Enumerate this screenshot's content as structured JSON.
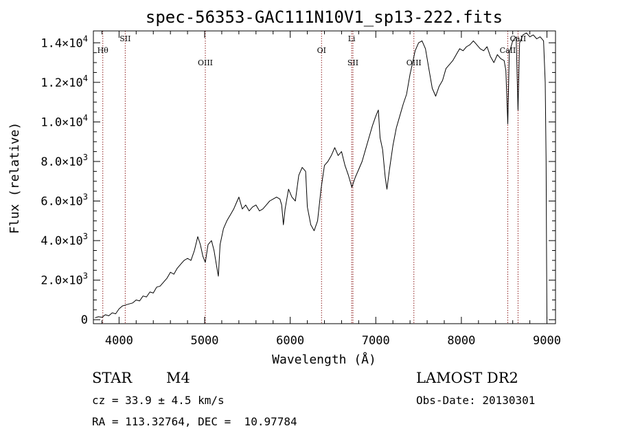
{
  "chart_data": {
    "type": "line",
    "title": "spec-56353-GAC111N10V1_sp13-222.fits",
    "xlabel": "Wavelength (Å)",
    "ylabel": "Flux (relative)",
    "xlim": [
      3700,
      9100
    ],
    "ylim": [
      -200,
      14600
    ],
    "x_ticks": [
      {
        "value": 4000,
        "label": "4000"
      },
      {
        "value": 5000,
        "label": "5000"
      },
      {
        "value": 6000,
        "label": "6000"
      },
      {
        "value": 7000,
        "label": "7000"
      },
      {
        "value": 8000,
        "label": "8000"
      },
      {
        "value": 9000,
        "label": "9000"
      }
    ],
    "y_ticks": [
      {
        "value": 0,
        "mant": "0",
        "exp": ""
      },
      {
        "value": 2000,
        "mant": "2.0×10",
        "exp": "3"
      },
      {
        "value": 4000,
        "mant": "4.0×10",
        "exp": "3"
      },
      {
        "value": 6000,
        "mant": "6.0×10",
        "exp": "3"
      },
      {
        "value": 8000,
        "mant": "8.0×10",
        "exp": "3"
      },
      {
        "value": 10000,
        "mant": "1.0×10",
        "exp": "4"
      },
      {
        "value": 12000,
        "mant": "1.2×10",
        "exp": "4"
      },
      {
        "value": 14000,
        "mant": "1.4×10",
        "exp": "4"
      }
    ],
    "grid": false,
    "lines": [
      {
        "wavelength": 3810,
        "label": "Hθ",
        "row": "upper"
      },
      {
        "wavelength": 4072,
        "label": "SII",
        "row": "top"
      },
      {
        "wavelength": 5008,
        "label": "OIII",
        "row": "mid"
      },
      {
        "wavelength": 6366,
        "label": "OI",
        "row": "upper"
      },
      {
        "wavelength": 6718,
        "label": "Li",
        "row": "top"
      },
      {
        "wavelength": 6733,
        "label": "SII",
        "row": "mid"
      },
      {
        "wavelength": 7445,
        "label": "OIII",
        "row": "mid"
      },
      {
        "wavelength": 8542,
        "label": "CaII",
        "row": "upper"
      },
      {
        "wavelength": 8662,
        "label": "CaII",
        "row": "top"
      }
    ],
    "spectrum": [
      [
        3720,
        100
      ],
      [
        3760,
        150
      ],
      [
        3800,
        120
      ],
      [
        3840,
        250
      ],
      [
        3880,
        200
      ],
      [
        3920,
        350
      ],
      [
        3960,
        300
      ],
      [
        4000,
        550
      ],
      [
        4040,
        700
      ],
      [
        4080,
        750
      ],
      [
        4120,
        800
      ],
      [
        4160,
        850
      ],
      [
        4200,
        1000
      ],
      [
        4240,
        950
      ],
      [
        4280,
        1200
      ],
      [
        4320,
        1150
      ],
      [
        4360,
        1400
      ],
      [
        4400,
        1350
      ],
      [
        4440,
        1650
      ],
      [
        4480,
        1700
      ],
      [
        4520,
        1900
      ],
      [
        4560,
        2100
      ],
      [
        4600,
        2400
      ],
      [
        4640,
        2300
      ],
      [
        4680,
        2600
      ],
      [
        4720,
        2800
      ],
      [
        4760,
        3000
      ],
      [
        4800,
        3100
      ],
      [
        4840,
        3000
      ],
      [
        4880,
        3500
      ],
      [
        4920,
        4200
      ],
      [
        4950,
        3800
      ],
      [
        4980,
        3200
      ],
      [
        5008,
        2900
      ],
      [
        5040,
        3800
      ],
      [
        5080,
        4000
      ],
      [
        5110,
        3500
      ],
      [
        5140,
        2700
      ],
      [
        5160,
        2200
      ],
      [
        5180,
        3800
      ],
      [
        5220,
        4600
      ],
      [
        5260,
        5000
      ],
      [
        5300,
        5300
      ],
      [
        5340,
        5600
      ],
      [
        5380,
        6000
      ],
      [
        5400,
        6200
      ],
      [
        5440,
        5600
      ],
      [
        5480,
        5800
      ],
      [
        5520,
        5500
      ],
      [
        5560,
        5700
      ],
      [
        5600,
        5800
      ],
      [
        5640,
        5500
      ],
      [
        5680,
        5600
      ],
      [
        5720,
        5800
      ],
      [
        5760,
        6000
      ],
      [
        5800,
        6100
      ],
      [
        5840,
        6200
      ],
      [
        5880,
        6100
      ],
      [
        5900,
        5800
      ],
      [
        5920,
        4800
      ],
      [
        5940,
        5600
      ],
      [
        5980,
        6600
      ],
      [
        6020,
        6200
      ],
      [
        6060,
        6000
      ],
      [
        6100,
        7300
      ],
      [
        6140,
        7700
      ],
      [
        6180,
        7500
      ],
      [
        6200,
        5700
      ],
      [
        6240,
        4800
      ],
      [
        6280,
        4500
      ],
      [
        6320,
        5000
      ],
      [
        6360,
        6600
      ],
      [
        6400,
        7800
      ],
      [
        6440,
        8000
      ],
      [
        6480,
        8300
      ],
      [
        6520,
        8700
      ],
      [
        6560,
        8300
      ],
      [
        6600,
        8500
      ],
      [
        6640,
        7800
      ],
      [
        6680,
        7300
      ],
      [
        6720,
        6700
      ],
      [
        6760,
        7200
      ],
      [
        6800,
        7600
      ],
      [
        6840,
        8000
      ],
      [
        6880,
        8600
      ],
      [
        6920,
        9200
      ],
      [
        6960,
        9800
      ],
      [
        7000,
        10300
      ],
      [
        7030,
        10600
      ],
      [
        7050,
        9200
      ],
      [
        7080,
        8600
      ],
      [
        7110,
        7200
      ],
      [
        7130,
        6600
      ],
      [
        7160,
        7600
      ],
      [
        7200,
        8800
      ],
      [
        7240,
        9700
      ],
      [
        7280,
        10300
      ],
      [
        7320,
        10900
      ],
      [
        7360,
        11400
      ],
      [
        7400,
        12400
      ],
      [
        7430,
        13000
      ],
      [
        7460,
        13600
      ],
      [
        7500,
        14000
      ],
      [
        7540,
        14100
      ],
      [
        7580,
        13700
      ],
      [
        7620,
        12700
      ],
      [
        7660,
        11700
      ],
      [
        7700,
        11300
      ],
      [
        7740,
        11800
      ],
      [
        7780,
        12100
      ],
      [
        7820,
        12700
      ],
      [
        7860,
        12900
      ],
      [
        7900,
        13100
      ],
      [
        7940,
        13400
      ],
      [
        7980,
        13700
      ],
      [
        8020,
        13600
      ],
      [
        8060,
        13800
      ],
      [
        8100,
        13900
      ],
      [
        8140,
        14100
      ],
      [
        8180,
        13900
      ],
      [
        8220,
        13700
      ],
      [
        8260,
        13600
      ],
      [
        8300,
        13800
      ],
      [
        8340,
        13300
      ],
      [
        8380,
        13000
      ],
      [
        8420,
        13400
      ],
      [
        8460,
        13200
      ],
      [
        8500,
        13100
      ],
      [
        8520,
        12600
      ],
      [
        8542,
        9900
      ],
      [
        8560,
        13500
      ],
      [
        8600,
        14100
      ],
      [
        8640,
        14300
      ],
      [
        8662,
        10600
      ],
      [
        8680,
        14000
      ],
      [
        8720,
        14400
      ],
      [
        8760,
        14500
      ],
      [
        8800,
        14300
      ],
      [
        8840,
        14400
      ],
      [
        8880,
        14200
      ],
      [
        8920,
        14300
      ],
      [
        8960,
        14100
      ],
      [
        8980,
        12000
      ],
      [
        8990,
        8000
      ],
      [
        8996,
        3000
      ],
      [
        9000,
        0
      ]
    ]
  },
  "object_class": "STAR",
  "subclass": "M4",
  "survey": "LAMOST DR2",
  "redshift_text": "cz = 33.9 ± 4.5 km/s",
  "obs_date_text": "Obs-Date: 20130301",
  "coords_text": "RA = 113.32764, DEC =  10.97784",
  "colors": {
    "line_marker": "#8b1a1a",
    "spectrum": "#000000"
  }
}
